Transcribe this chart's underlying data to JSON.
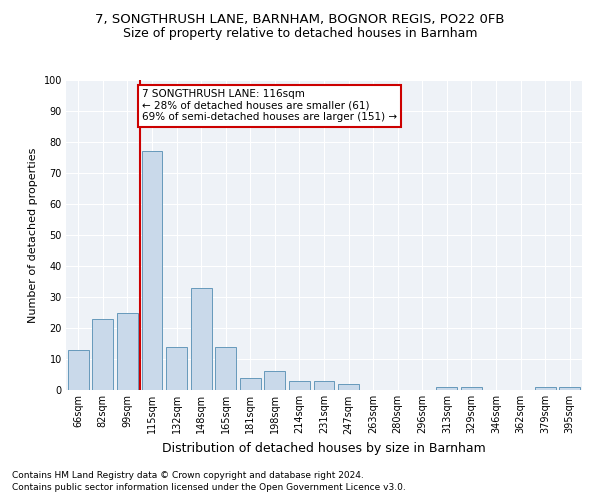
{
  "title1": "7, SONGTHRUSH LANE, BARNHAM, BOGNOR REGIS, PO22 0FB",
  "title2": "Size of property relative to detached houses in Barnham",
  "xlabel": "Distribution of detached houses by size in Barnham",
  "ylabel": "Number of detached properties",
  "categories": [
    "66sqm",
    "82sqm",
    "99sqm",
    "115sqm",
    "132sqm",
    "148sqm",
    "165sqm",
    "181sqm",
    "198sqm",
    "214sqm",
    "231sqm",
    "247sqm",
    "263sqm",
    "280sqm",
    "296sqm",
    "313sqm",
    "329sqm",
    "346sqm",
    "362sqm",
    "379sqm",
    "395sqm"
  ],
  "values": [
    13,
    23,
    25,
    77,
    14,
    33,
    14,
    4,
    6,
    3,
    3,
    2,
    0,
    0,
    0,
    1,
    1,
    0,
    0,
    1,
    1
  ],
  "bar_color": "#c9d9ea",
  "bar_edge_color": "#6699bb",
  "annotation_line1": "7 SONGTHRUSH LANE: 116sqm",
  "annotation_line2": "← 28% of detached houses are smaller (61)",
  "annotation_line3": "69% of semi-detached houses are larger (151) →",
  "annotation_box_facecolor": "#ffffff",
  "annotation_box_edgecolor": "#cc0000",
  "vline_color": "#cc0000",
  "vline_x_index": 2.5,
  "ylim": [
    0,
    100
  ],
  "yticks": [
    0,
    10,
    20,
    30,
    40,
    50,
    60,
    70,
    80,
    90,
    100
  ],
  "bg_color": "#eef2f7",
  "grid_color": "#ffffff",
  "title1_fontsize": 9.5,
  "title2_fontsize": 9,
  "ylabel_fontsize": 8,
  "xlabel_fontsize": 9,
  "tick_fontsize": 7,
  "footer1": "Contains HM Land Registry data © Crown copyright and database right 2024.",
  "footer2": "Contains public sector information licensed under the Open Government Licence v3.0.",
  "footer_fontsize": 6.5
}
